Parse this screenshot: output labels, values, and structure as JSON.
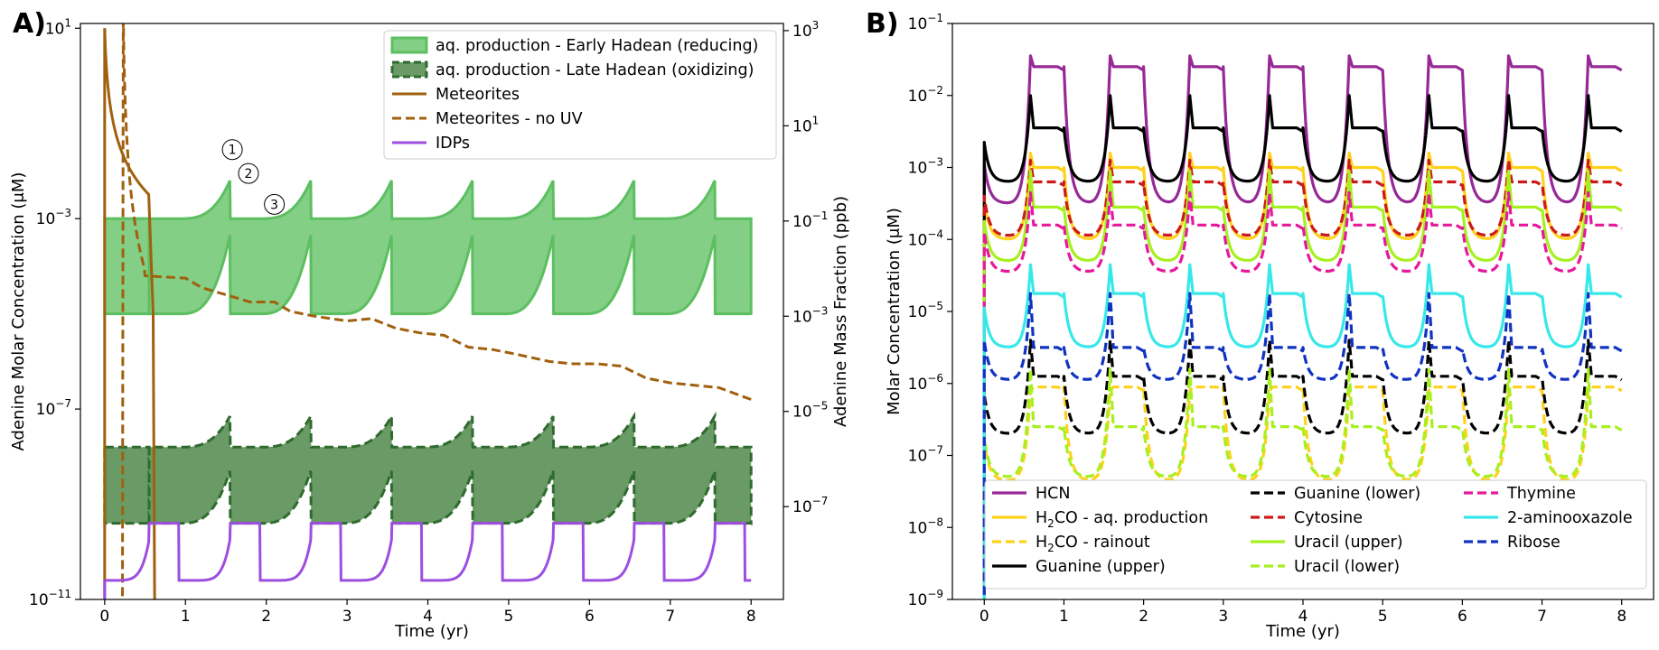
{
  "chart_data": [
    {
      "id": "A",
      "panel_label": "A)",
      "type": "line",
      "xlabel": "Time (yr)",
      "ylabel": "Adenine Molar Concentration (μM)",
      "ylabel_right": "Adenine Mass Fraction (ppb)",
      "xlim": [
        -0.3,
        8.4
      ],
      "ylim_log10": [
        -11,
        1.1
      ],
      "x_ticks": [
        0,
        1,
        2,
        3,
        4,
        5,
        6,
        7,
        8
      ],
      "y_ticks_log10": [
        -11,
        -7,
        -3,
        1
      ],
      "y_ticks_right_log10": [
        -7,
        -5,
        -3,
        -1,
        1,
        3
      ],
      "y_right_offset_log10": 2.05,
      "legend_position": "top-right",
      "series": [
        {
          "name": "aq. production - Early Hadean (reducing)",
          "kind": "band",
          "color": "#5cbf60",
          "fill": "#84cf86",
          "dashed": false,
          "upper_base": -3.0,
          "upper_peak": -2.2,
          "lower_base": -5.0,
          "lower_peak": -3.35
        },
        {
          "name": "aq. production - Late Hadean (oxidizing)",
          "kind": "band",
          "color": "#2e6b2e",
          "fill": "#6a9a65",
          "dashed": true,
          "upper_base": -7.8,
          "upper_peak": -7.15,
          "lower_base": -9.4,
          "lower_peak": -8.3
        },
        {
          "name": "Meteorites",
          "kind": "line",
          "color": "#a0600e",
          "dashed": false
        },
        {
          "name": "Meteorites - no UV",
          "kind": "line",
          "color": "#a0600e",
          "dashed": true
        },
        {
          "name": "IDPs",
          "kind": "line",
          "color": "#9c4ee0",
          "dashed": false,
          "base": -10.6,
          "peak": -9.75
        }
      ],
      "meteorites_noUV_points": [
        [
          0.5,
          -4.2
        ],
        [
          1.0,
          -4.25
        ],
        [
          1.2,
          -4.45
        ],
        [
          1.5,
          -4.6
        ],
        [
          1.8,
          -4.75
        ],
        [
          2.1,
          -4.75
        ],
        [
          2.3,
          -4.95
        ],
        [
          2.6,
          -5.05
        ],
        [
          3.0,
          -5.15
        ],
        [
          3.3,
          -5.1
        ],
        [
          3.6,
          -5.3
        ],
        [
          3.9,
          -5.4
        ],
        [
          4.2,
          -5.45
        ],
        [
          4.5,
          -5.7
        ],
        [
          4.8,
          -5.75
        ],
        [
          5.1,
          -5.85
        ],
        [
          5.5,
          -6.0
        ],
        [
          5.8,
          -6.05
        ],
        [
          6.1,
          -6.05
        ],
        [
          6.4,
          -6.1
        ],
        [
          6.7,
          -6.35
        ],
        [
          7.0,
          -6.45
        ],
        [
          7.3,
          -6.5
        ],
        [
          7.6,
          -6.55
        ],
        [
          8.0,
          -6.8
        ]
      ],
      "annotations": [
        "1",
        "2",
        "3"
      ]
    },
    {
      "id": "B",
      "panel_label": "B)",
      "type": "line",
      "xlabel": "Time (yr)",
      "ylabel": "Molar Concentration (μM)",
      "xlim": [
        -0.4,
        8.4
      ],
      "ylim_log10": [
        -9,
        -1
      ],
      "x_ticks": [
        0,
        1,
        2,
        3,
        4,
        5,
        6,
        7,
        8
      ],
      "y_ticks_log10": [
        -9,
        -8,
        -7,
        -6,
        -5,
        -4,
        -3,
        -2,
        -1
      ],
      "legend_position": "bottom",
      "series": [
        {
          "name": "HCN",
          "color": "#972996",
          "dashed": false,
          "base": -3.5,
          "peak": -1.45,
          "plateau": -1.6
        },
        {
          "name": "H₂CO - aq. production",
          "label_main": "H",
          "label_sub": "2",
          "label_rest": "CO - aq. production",
          "color": "#ffd11a",
          "dashed": false,
          "base": -4.0,
          "peak": -2.8,
          "plateau": -3.0
        },
        {
          "name": "H₂CO - rainout",
          "label_main": "H",
          "label_sub": "2",
          "label_rest": "CO - rainout",
          "color": "#ffd11a",
          "dashed": true,
          "base": -7.35,
          "peak": -6.1,
          "plateau": -6.05
        },
        {
          "name": "Guanine (upper)",
          "color": "#000000",
          "dashed": false,
          "base": -3.2,
          "peak": -2.0,
          "plateau": -2.45
        },
        {
          "name": "Guanine (lower)",
          "color": "#000000",
          "dashed": true,
          "base": -6.7,
          "peak": -5.4,
          "plateau": -5.9
        },
        {
          "name": "Cytosine",
          "color": "#cc1a1a",
          "dashed": true,
          "base": -3.95,
          "peak": -2.9,
          "plateau": -3.2
        },
        {
          "name": "Uracil (upper)",
          "color": "#a6f020",
          "dashed": false,
          "base": -4.3,
          "peak": -3.05,
          "plateau": -3.55
        },
        {
          "name": "Uracil (lower)",
          "color": "#a6f020",
          "dashed": true,
          "base": -7.3,
          "peak": -5.8,
          "plateau": -6.6
        },
        {
          "name": "Thymine",
          "color": "#e6199d",
          "dashed": true,
          "base": -4.45,
          "peak": -3.35,
          "plateau": -3.8
        },
        {
          "name": "2-aminooxazole",
          "color": "#36e8ea",
          "dashed": false,
          "base": -5.5,
          "peak": -4.35,
          "plateau": -4.75
        },
        {
          "name": "Ribose",
          "color": "#1033c0",
          "dashed": true,
          "base": -5.95,
          "peak": -4.75,
          "plateau": -5.5
        }
      ]
    }
  ]
}
